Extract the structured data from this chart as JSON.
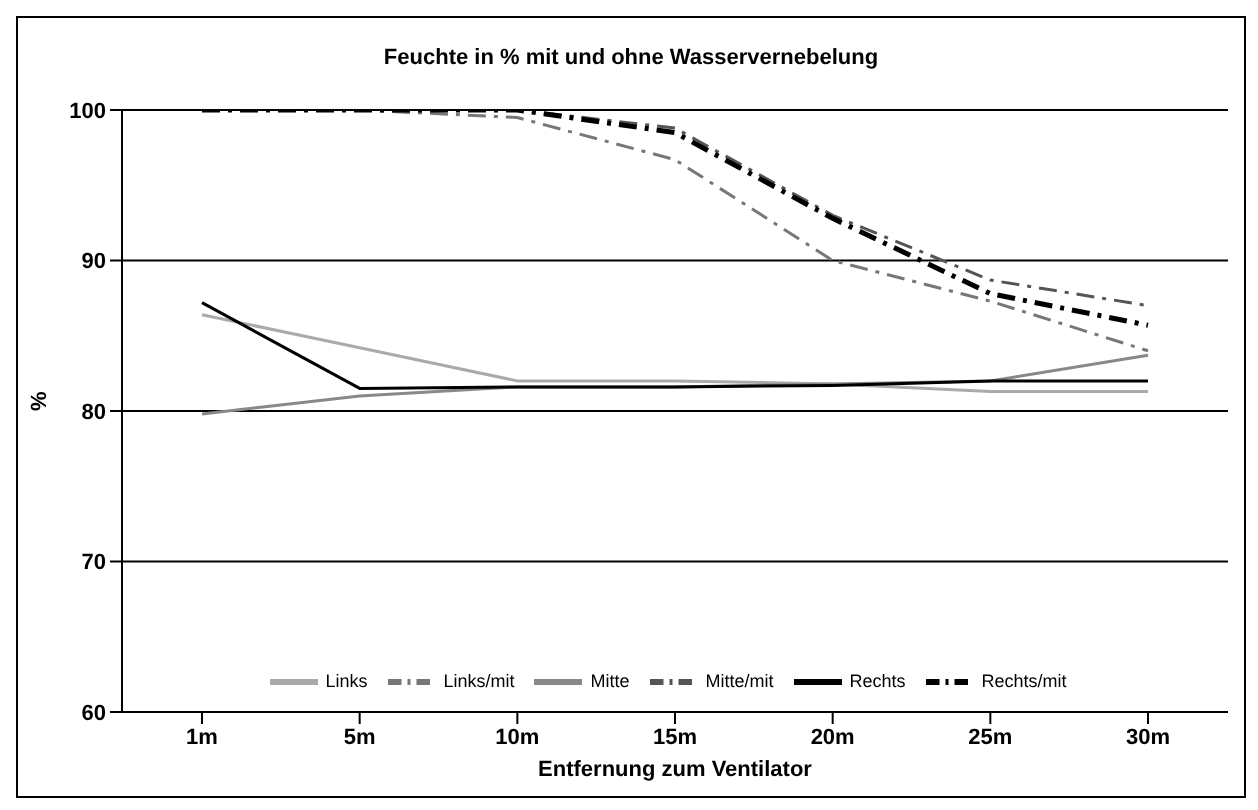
{
  "chart_data": {
    "type": "line",
    "title": "Feuchte in % mit und ohne Wasservernebelung",
    "xlabel": "Entfernung zum Ventilator",
    "ylabel": "%",
    "categories": [
      "1m",
      "5m",
      "10m",
      "15m",
      "20m",
      "25m",
      "30m"
    ],
    "ylim": [
      60,
      100
    ],
    "yticks": [
      60,
      70,
      80,
      90,
      100
    ],
    "grid": "y",
    "legend": "bottom",
    "marker": "none",
    "series": [
      {
        "name": "Links",
        "color": "#aaaaaa",
        "line_style": "solid",
        "values": [
          86.4,
          84.2,
          82,
          82,
          81.8,
          81.3,
          81.3
        ]
      },
      {
        "name": "Links/mit",
        "color": "#777777",
        "line_style": "dashed",
        "values": [
          100,
          100,
          99.5,
          96.7,
          90,
          87.3,
          84
        ]
      },
      {
        "name": "Mitte",
        "color": "#888888",
        "line_style": "solid",
        "values": [
          79.8,
          81,
          81.6,
          81.6,
          81.8,
          82,
          83.7
        ]
      },
      {
        "name": "Mitte/mit",
        "color": "#555555",
        "line_style": "dashed",
        "values": [
          100,
          100,
          100,
          98.8,
          93,
          88.7,
          87
        ]
      },
      {
        "name": "Rechts",
        "color": "#000000",
        "line_style": "solid",
        "values": [
          87.2,
          81.5,
          81.6,
          81.6,
          81.7,
          82,
          82
        ]
      },
      {
        "name": "Rechts/mit",
        "color": "#000000",
        "line_style": "dashed",
        "values": [
          100,
          100,
          100,
          98.5,
          92.8,
          87.8,
          85.7
        ]
      }
    ]
  }
}
